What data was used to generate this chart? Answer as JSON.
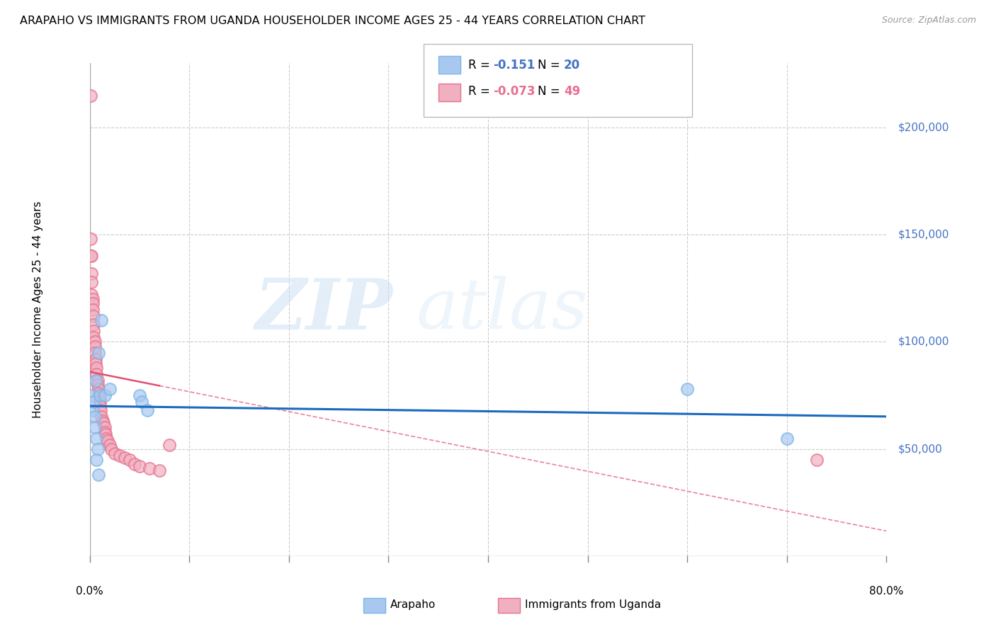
{
  "title": "ARAPAHO VS IMMIGRANTS FROM UGANDA HOUSEHOLDER INCOME AGES 25 - 44 YEARS CORRELATION CHART",
  "source": "Source: ZipAtlas.com",
  "ylabel": "Householder Income Ages 25 - 44 years",
  "ytick_labels": [
    "$50,000",
    "$100,000",
    "$150,000",
    "$200,000"
  ],
  "ytick_values": [
    50000,
    100000,
    150000,
    200000
  ],
  "legend_r_blue": "R =  -0.151   N = 20",
  "legend_r_pink": "R = -0.073   N = 49",
  "bottom_legend_arapaho": "Arapaho",
  "bottom_legend_uganda": "Immigrants from Uganda",
  "arapaho_x": [
    0.002,
    0.003,
    0.004,
    0.005,
    0.005,
    0.006,
    0.007,
    0.008,
    0.009,
    0.01,
    0.012,
    0.015,
    0.05,
    0.052,
    0.058,
    0.02,
    0.6,
    0.7,
    0.007,
    0.009
  ],
  "arapaho_y": [
    75000,
    68000,
    72000,
    65000,
    60000,
    82000,
    55000,
    50000,
    95000,
    75000,
    110000,
    75000,
    75000,
    72000,
    68000,
    78000,
    78000,
    55000,
    45000,
    38000
  ],
  "uganda_x": [
    0.001,
    0.001,
    0.001,
    0.002,
    0.002,
    0.002,
    0.002,
    0.003,
    0.003,
    0.003,
    0.004,
    0.004,
    0.004,
    0.004,
    0.005,
    0.005,
    0.005,
    0.006,
    0.006,
    0.007,
    0.007,
    0.008,
    0.008,
    0.009,
    0.009,
    0.01,
    0.01,
    0.01,
    0.011,
    0.012,
    0.013,
    0.014,
    0.015,
    0.015,
    0.016,
    0.017,
    0.018,
    0.02,
    0.022,
    0.025,
    0.03,
    0.035,
    0.04,
    0.045,
    0.05,
    0.06,
    0.07,
    0.08,
    0.73
  ],
  "uganda_y": [
    215000,
    148000,
    140000,
    140000,
    132000,
    128000,
    122000,
    120000,
    118000,
    115000,
    112000,
    108000,
    105000,
    102000,
    100000,
    98000,
    95000,
    92000,
    90000,
    88000,
    85000,
    82000,
    80000,
    78000,
    76000,
    74000,
    72000,
    70000,
    68000,
    65000,
    63000,
    62000,
    60000,
    58000,
    57000,
    55000,
    54000,
    52000,
    50000,
    48000,
    47000,
    46000,
    45000,
    43000,
    42000,
    41000,
    40000,
    52000,
    45000
  ],
  "arapaho_color": "#a8c8f0",
  "uganda_color": "#f0b0c0",
  "arapaho_edge_color": "#7db4e6",
  "uganda_edge_color": "#e87090",
  "arapaho_line_color": "#1a6abf",
  "uganda_line_color": "#e05070",
  "background_color": "#ffffff",
  "grid_color": "#cccccc",
  "xmin": 0.0,
  "xmax": 0.8,
  "ymin": 0,
  "ymax": 230000,
  "xtick_positions": [
    0.0,
    0.1,
    0.2,
    0.3,
    0.4,
    0.5,
    0.6,
    0.7,
    0.8
  ]
}
